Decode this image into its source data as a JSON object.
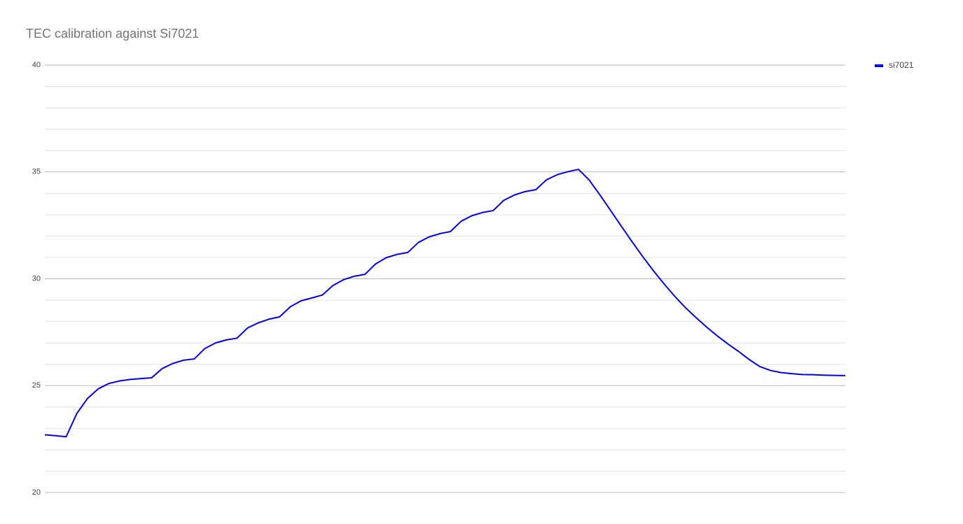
{
  "chart_data": {
    "type": "line",
    "title": "TEC calibration against Si7021",
    "series": [
      {
        "name": "si7021",
        "color": "#0000ee",
        "values": [
          22.7,
          22.66,
          22.61,
          23.7,
          24.4,
          24.85,
          25.1,
          25.22,
          25.29,
          25.33,
          25.37,
          25.8,
          26.04,
          26.19,
          26.25,
          26.74,
          27.0,
          27.14,
          27.22,
          27.7,
          27.94,
          28.11,
          28.22,
          28.69,
          28.97,
          29.1,
          29.24,
          29.69,
          29.96,
          30.12,
          30.21,
          30.7,
          30.99,
          31.14,
          31.23,
          31.7,
          31.96,
          32.11,
          32.21,
          32.69,
          32.95,
          33.1,
          33.19,
          33.67,
          33.92,
          34.08,
          34.17,
          34.63,
          34.87,
          35.01,
          35.12,
          34.62,
          33.93,
          33.2,
          32.47,
          31.75,
          31.05,
          30.39,
          29.77,
          29.19,
          28.66,
          28.19,
          27.74,
          27.33,
          26.95,
          26.6,
          26.22,
          25.89,
          25.71,
          25.61,
          25.56,
          25.52,
          25.51,
          25.49,
          25.48,
          25.47
        ]
      }
    ],
    "ylim": [
      20,
      40
    ],
    "yticks": [
      20,
      25,
      30,
      35,
      40
    ],
    "minor_yticks": [
      21,
      22,
      23,
      24,
      26,
      27,
      28,
      29,
      31,
      32,
      33,
      34,
      36,
      37,
      38,
      39
    ],
    "grid": true,
    "legend": "right"
  }
}
